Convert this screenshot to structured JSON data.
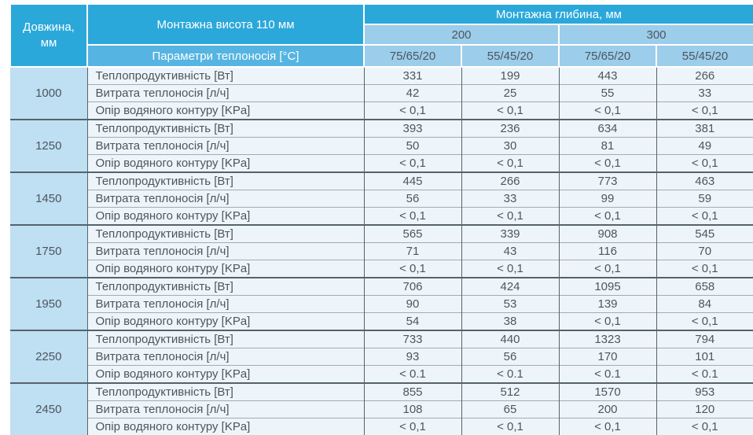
{
  "header": {
    "length_label": "Довжина,\nмм",
    "height_label": "Монтажна висота 110 мм",
    "params_label": "Параметри теплоносія [°C]",
    "depth_label": "Монтажна глибина, мм",
    "depths": [
      "200",
      "300"
    ],
    "regimes": [
      "75/65/20",
      "55/45/20",
      "75/65/20",
      "55/45/20"
    ]
  },
  "row_labels": [
    "Теплопродуктивність [Вт]",
    "Витрата теплоносія [л/ч]",
    "Опір водяного контуру [KPa]"
  ],
  "groups": [
    {
      "length": "1000",
      "rows": [
        [
          "331",
          "199",
          "443",
          "266"
        ],
        [
          "42",
          "25",
          "55",
          "33"
        ],
        [
          "< 0,1",
          "< 0,1",
          "< 0,1",
          "< 0,1"
        ]
      ]
    },
    {
      "length": "1250",
      "rows": [
        [
          "393",
          "236",
          "634",
          "381"
        ],
        [
          "50",
          "30",
          "81",
          "49"
        ],
        [
          "< 0,1",
          "< 0,1",
          "< 0,1",
          "< 0,1"
        ]
      ]
    },
    {
      "length": "1450",
      "rows": [
        [
          "445",
          "266",
          "773",
          "463"
        ],
        [
          "56",
          "33",
          "99",
          "59"
        ],
        [
          "< 0,1",
          "< 0,1",
          "< 0,1",
          "< 0,1"
        ]
      ]
    },
    {
      "length": "1750",
      "rows": [
        [
          "565",
          "339",
          "908",
          "545"
        ],
        [
          "71",
          "43",
          "116",
          "70"
        ],
        [
          "< 0,1",
          "< 0,1",
          "< 0,1",
          "< 0,1"
        ]
      ]
    },
    {
      "length": "1950",
      "rows": [
        [
          "706",
          "424",
          "1095",
          "658"
        ],
        [
          "90",
          "53",
          "139",
          "84"
        ],
        [
          "54",
          "38",
          "< 0,1",
          "< 0,1"
        ]
      ]
    },
    {
      "length": "2250",
      "rows": [
        [
          "733",
          "440",
          "1323",
          "794"
        ],
        [
          "93",
          "56",
          "170",
          "101"
        ],
        [
          "< 0.1",
          "< 0.1",
          "< 0.1",
          "< 0.1"
        ]
      ]
    },
    {
      "length": "2450",
      "rows": [
        [
          "855",
          "512",
          "1570",
          "953"
        ],
        [
          "108",
          "65",
          "200",
          "120"
        ],
        [
          "< 0,1",
          "< 0,1",
          "< 0,1",
          "< 0,1"
        ]
      ]
    }
  ],
  "colors": {
    "header_blue": "#2BA8DA",
    "subheader_blue": "#55B4E1",
    "band_blue": "#9CCDEA",
    "length_blue": "#BFDFF2",
    "row_bg": "#EEF5FA",
    "grid_dark": "#55636C",
    "grid_light": "#A3ACB2",
    "text_dark": "#4C565E",
    "text_white": "#FFFFFF"
  }
}
